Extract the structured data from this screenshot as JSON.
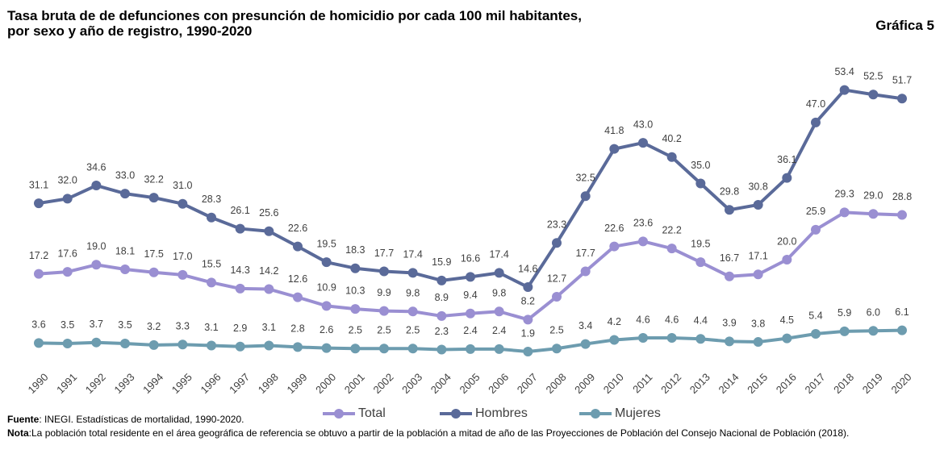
{
  "chart_data": {
    "type": "line",
    "title": [
      "Tasa bruta de de defunciones con presunción de homicidio por cada 100 mil habitantes,",
      "por sexo y año de registro, 1990-2020"
    ],
    "figure_label": "Gráfica 5",
    "categories": [
      "1990",
      "1991",
      "1992",
      "1993",
      "1994",
      "1995",
      "1996",
      "1997",
      "1998",
      "1999",
      "2000",
      "2001",
      "2002",
      "2003",
      "2004",
      "2005",
      "2006",
      "2007",
      "2008",
      "2009",
      "2010",
      "2011",
      "2012",
      "2013",
      "2014",
      "2015",
      "2016",
      "2017",
      "2018",
      "2019",
      "2020"
    ],
    "series": [
      {
        "name": "Total",
        "color": "#9a8fd2",
        "values": [
          17.2,
          17.6,
          19.0,
          18.1,
          17.5,
          17.0,
          15.5,
          14.3,
          14.2,
          12.6,
          10.9,
          10.3,
          9.9,
          9.8,
          8.9,
          9.4,
          9.8,
          8.2,
          12.7,
          17.7,
          22.6,
          23.6,
          22.2,
          19.5,
          16.7,
          17.1,
          20.0,
          25.9,
          29.3,
          29.0,
          28.8
        ],
        "value_labels": [
          "17.2",
          "17.6",
          "19.0",
          "18.1",
          "17.5",
          "17.0",
          "15.5",
          "14.3",
          "14.2",
          "12.6",
          "10.9",
          "10.3",
          "9.9",
          "9.8",
          "8.9",
          "9.4",
          "9.8",
          "8.2",
          "12.7",
          "17.7",
          "22.6",
          "23.6",
          "22.2",
          "19.5",
          "16.7",
          "17.1",
          "20.0",
          "25.9",
          "29.3",
          "29.0",
          "28.8"
        ]
      },
      {
        "name": "Hombres",
        "color": "#5a6a99",
        "values": [
          31.1,
          32.0,
          34.6,
          33.0,
          32.2,
          31.0,
          28.3,
          26.1,
          25.6,
          22.6,
          19.5,
          18.3,
          17.7,
          17.4,
          15.9,
          16.6,
          17.4,
          14.6,
          23.3,
          32.5,
          41.8,
          43.0,
          40.2,
          35.0,
          29.8,
          30.8,
          36.1,
          47.0,
          53.4,
          52.5,
          51.7
        ],
        "value_labels": [
          "31.1",
          "32.0",
          "34.6",
          "33.0",
          "32.2",
          "31.0",
          "28.3",
          "26.1",
          "25.6",
          "22.6",
          "19.5",
          "18.3",
          "17.7",
          "17.4",
          "15.9",
          "16.6",
          "17.4",
          "14.6",
          "23.3",
          "32.5",
          "41.8",
          "43.0",
          "40.2",
          "35.0",
          "29.8",
          "30.8",
          "36.1",
          "47.0",
          "53.4",
          "52.5",
          "51.7"
        ]
      },
      {
        "name": "Mujeres",
        "color": "#6d9caf",
        "values": [
          3.6,
          3.5,
          3.7,
          3.5,
          3.2,
          3.3,
          3.1,
          2.9,
          3.1,
          2.8,
          2.6,
          2.5,
          2.5,
          2.5,
          2.3,
          2.4,
          2.4,
          1.9,
          2.5,
          3.4,
          4.2,
          4.6,
          4.6,
          4.4,
          3.9,
          3.8,
          4.5,
          5.4,
          5.9,
          6.0,
          6.1
        ],
        "value_labels": [
          "3.6",
          "3.5",
          "3.7",
          "3.5",
          "3.2",
          "3.3",
          "3.1",
          "2.9",
          "3.1",
          "2.8",
          "2.6",
          "2.5",
          "2.5",
          "2.5",
          "2.3",
          "2.4",
          "2.4",
          "1.9",
          "2.5",
          "3.4",
          "4.2",
          "4.6",
          "4.6",
          "4.4",
          "3.9",
          "3.8",
          "4.5",
          "5.4",
          "5.9",
          "6.0",
          "6.1"
        ]
      }
    ],
    "ylim": [
      0,
      60
    ],
    "legend": "bottom",
    "source_label": "Fuente",
    "source": ": INEGI. Estadísticas de mortalidad, 1990-2020.",
    "note_label": "Nota",
    "note": ":La población total residente en el área geográfica de referencia se obtuvo a partir de la población a mitad de año de las Proyecciones de Población del Consejo Nacional de Población (2018)."
  }
}
